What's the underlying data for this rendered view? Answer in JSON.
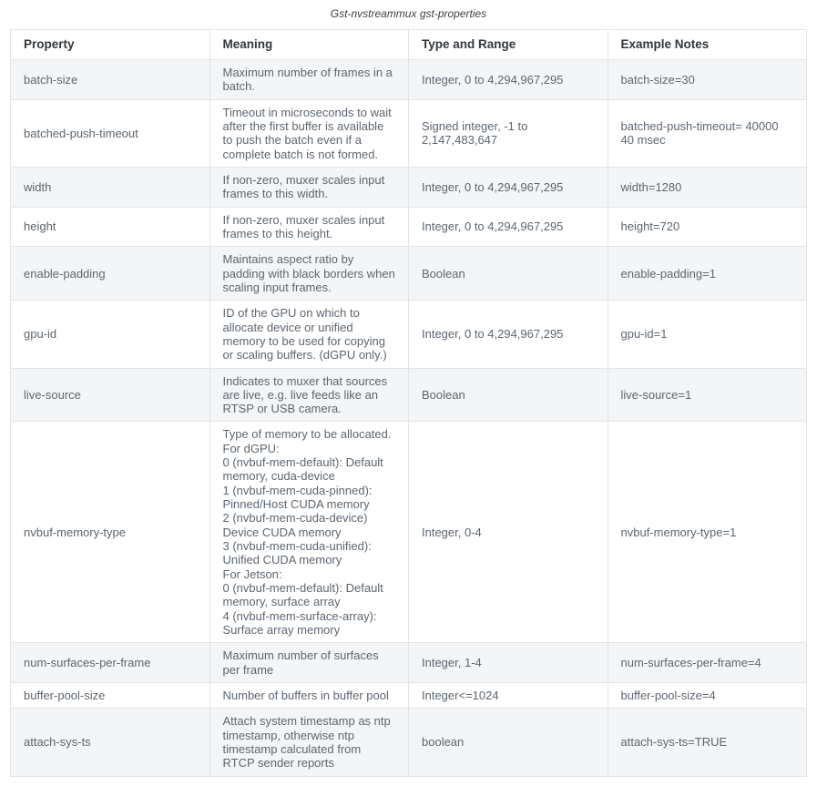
{
  "title": "Gst-nvstreammux gst-properties",
  "table": {
    "headers": [
      "Property",
      "Meaning",
      "Type and Range",
      "Example Notes"
    ],
    "rows": [
      {
        "property": "batch-size",
        "meaning": "Maximum number of frames in a batch.",
        "type_range": "Integer, 0 to 4,294,967,295",
        "example": "batch-size=30"
      },
      {
        "property": "batched-push-timeout",
        "meaning": "Timeout in microseconds to wait after the first buffer is available to push the batch even if a complete batch is not formed.",
        "type_range": "Signed integer, -1 to 2,147,483,647",
        "example": "batched-push-timeout= 40000 40 msec"
      },
      {
        "property": "width",
        "meaning": "If non-zero, muxer scales input frames to this width.",
        "type_range": "Integer, 0 to 4,294,967,295",
        "example": "width=1280"
      },
      {
        "property": "height",
        "meaning": "If non-zero, muxer scales input frames to this height.",
        "type_range": "Integer, 0 to 4,294,967,295",
        "example": "height=720"
      },
      {
        "property": "enable-padding",
        "meaning": "Maintains aspect ratio by padding with black borders when scaling input frames.",
        "type_range": "Boolean",
        "example": "enable-padding=1"
      },
      {
        "property": "gpu-id",
        "meaning": "ID of the GPU on which to allocate device or unified memory to be used for copying or scaling buffers. (dGPU only.)",
        "type_range": "Integer, 0 to 4,294,967,295",
        "example": "gpu-id=1"
      },
      {
        "property": "live-source",
        "meaning": "Indicates to muxer that sources are live, e.g. live feeds like an RTSP or USB camera.",
        "type_range": "Boolean",
        "example": "live-source=1"
      },
      {
        "property": "nvbuf-memory-type",
        "meaning": "Type of memory to be allocated.\nFor dGPU:\n0 (nvbuf-mem-default): Default memory, cuda-device\n1 (nvbuf-mem-cuda-pinned): Pinned/Host CUDA memory\n2 (nvbuf-mem-cuda-device) Device CUDA memory\n3 (nvbuf-mem-cuda-unified): Unified CUDA memory\nFor Jetson:\n0 (nvbuf-mem-default): Default memory, surface array\n4 (nvbuf-mem-surface-array): Surface array memory",
        "type_range": "Integer, 0-4",
        "example": "nvbuf-memory-type=1"
      },
      {
        "property": "num-surfaces-per-frame",
        "meaning": "Maximum number of surfaces per frame",
        "type_range": "Integer, 1-4",
        "example": "num-surfaces-per-frame=4"
      },
      {
        "property": "buffer-pool-size",
        "meaning": "Number of buffers in buffer pool",
        "type_range": "Integer<=1024",
        "example": "buffer-pool-size=4"
      },
      {
        "property": "attach-sys-ts",
        "meaning": "Attach system timestamp as ntp timestamp, otherwise ntp timestamp calculated from RTCP sender reports",
        "type_range": "boolean",
        "example": "attach-sys-ts=TRUE"
      }
    ]
  }
}
